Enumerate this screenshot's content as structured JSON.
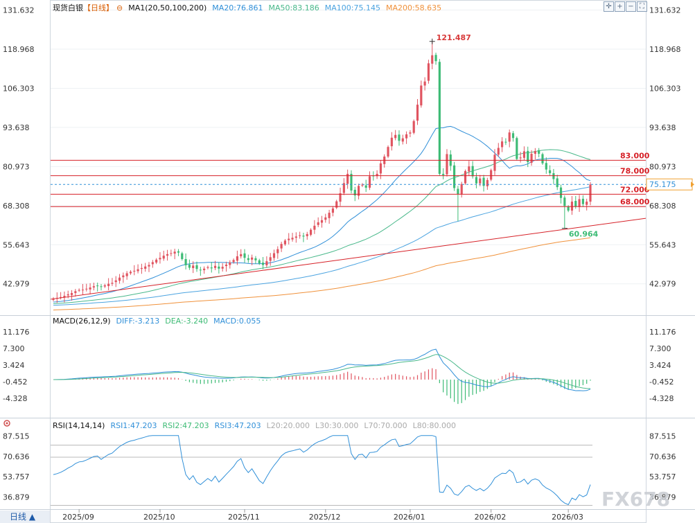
{
  "header": {
    "instrument": "现货白银",
    "period": "【日线】",
    "eye_icon": "⊖",
    "ma_label": "MA1(20,50,100,200)",
    "ma20": "MA20:76.861",
    "ma50": "MA50:83.186",
    "ma100": "MA100:75.145",
    "ma200": "MA200:58.635"
  },
  "macd_header": {
    "label": "MACD(26,12,9)",
    "diff": "DIFF:-3.213",
    "dea": "DEA:-3.240",
    "macd": "MACD:0.055"
  },
  "rsi_header": {
    "label": "RSI(14,14,14)",
    "rsi1": "RSI1:47.203",
    "rsi2": "RSI2:47.203",
    "rsi3": "RSI3:47.203",
    "l20": "L20:20.000",
    "l30": "L30:30.000",
    "l70": "L70:70.000",
    "l80": "L80:80.000"
  },
  "bottom": {
    "period_button": "日线 ▲",
    "watermark": "FX678"
  },
  "colors": {
    "up": "#e05460",
    "down": "#3dbb75",
    "ma20": "#2f8fd8",
    "ma50": "#48b88a",
    "ma100": "#4aa3e0",
    "ma200": "#f0913a",
    "hline": "#d61f26",
    "axis_text": "#333333"
  },
  "chart_data": [
    {
      "type": "candlestick",
      "title": "现货白银 日线",
      "x_labels": [
        "2025/09",
        "2025/10",
        "2025/11",
        "2025/12",
        "2026/01",
        "2026/02",
        "2026/03"
      ],
      "y_ticks": [
        131.632,
        118.968,
        106.303,
        93.638,
        80.973,
        68.308,
        55.643,
        42.979
      ],
      "ylim": [
        33.5,
        134.0
      ],
      "last_price": "75.175",
      "high_annotation": {
        "label": "121.487",
        "value": 121.487
      },
      "low_annotation": {
        "label": "60.964",
        "value": 60.964
      },
      "horizontal_levels": [
        {
          "label": "83.000",
          "value": 83.0
        },
        {
          "label": "78.000",
          "value": 78.0
        },
        {
          "label": "72.000",
          "value": 72.0
        },
        {
          "label": "68.000",
          "value": 68.0
        }
      ],
      "trendline": {
        "from_date": "2025/08/25",
        "from_value": 38.0,
        "to_date": "2026/03/31",
        "to_value": 64.2
      },
      "closes": [
        38.2,
        38.4,
        38.7,
        39.1,
        39.6,
        40.0,
        40.6,
        41.0,
        41.1,
        41.4,
        41.8,
        42.2,
        42.3,
        42.0,
        42.5,
        43.0,
        43.3,
        44.1,
        45.0,
        45.7,
        46.4,
        46.9,
        47.2,
        47.7,
        48.1,
        48.6,
        49.1,
        50.0,
        50.8,
        51.4,
        52.1,
        52.6,
        52.9,
        53.4,
        53.1,
        51.0,
        49.0,
        48.2,
        48.9,
        47.8,
        47.4,
        47.9,
        48.4,
        48.0,
        48.8,
        47.9,
        48.5,
        49.2,
        49.9,
        50.7,
        51.9,
        52.6,
        51.4,
        50.7,
        51.5,
        50.6,
        49.6,
        49.1,
        50.3,
        51.6,
        52.9,
        54.2,
        55.9,
        57.0,
        57.6,
        57.9,
        58.3,
        58.7,
        58.3,
        59.1,
        60.5,
        61.8,
        62.9,
        63.6,
        64.5,
        66.0,
        67.4,
        69.7,
        72.3,
        75.6,
        78.6,
        73.2,
        71.6,
        74.7,
        75.1,
        74.1,
        77.8,
        78.0,
        78.6,
        82.0,
        84.2,
        87.3,
        90.3,
        91.2,
        89.3,
        90.1,
        91.4,
        92.0,
        95.7,
        101.0,
        107.2,
        108.5,
        114.4,
        117.0,
        115.1,
        78.6,
        78.2,
        85.0,
        81.2,
        74.0,
        72.1,
        75.3,
        79.5,
        81.0,
        77.8,
        75.5,
        77.1,
        74.7,
        76.6,
        79.8,
        84.8,
        87.0,
        89.1,
        88.9,
        92.0,
        90.2,
        83.4,
        83.9,
        85.9,
        82.4,
        85.1,
        86.0,
        85.1,
        82.0,
        80.0,
        78.8,
        76.9,
        74.3,
        70.8,
        68.2,
        66.7,
        69.6,
        68.0,
        70.4,
        68.8,
        69.6,
        75.175
      ],
      "moving_averages": [
        "MA20",
        "MA50",
        "MA100",
        "MA200"
      ]
    },
    {
      "type": "macd",
      "title": "MACD(26,12,9)",
      "y_ticks": [
        11.176,
        7.3,
        3.424,
        -0.452,
        -4.328
      ],
      "ylim": [
        -8.4,
        12.6
      ],
      "diff_last": -3.213,
      "dea_last": -3.24,
      "macd_last": 0.055
    },
    {
      "type": "rsi",
      "title": "RSI(14,14,14)",
      "y_ticks": [
        87.515,
        70.636,
        53.757,
        36.879
      ],
      "ylim": [
        28,
        93
      ],
      "levels": [
        20,
        30,
        70,
        80
      ],
      "rsi_last": 47.203
    }
  ]
}
